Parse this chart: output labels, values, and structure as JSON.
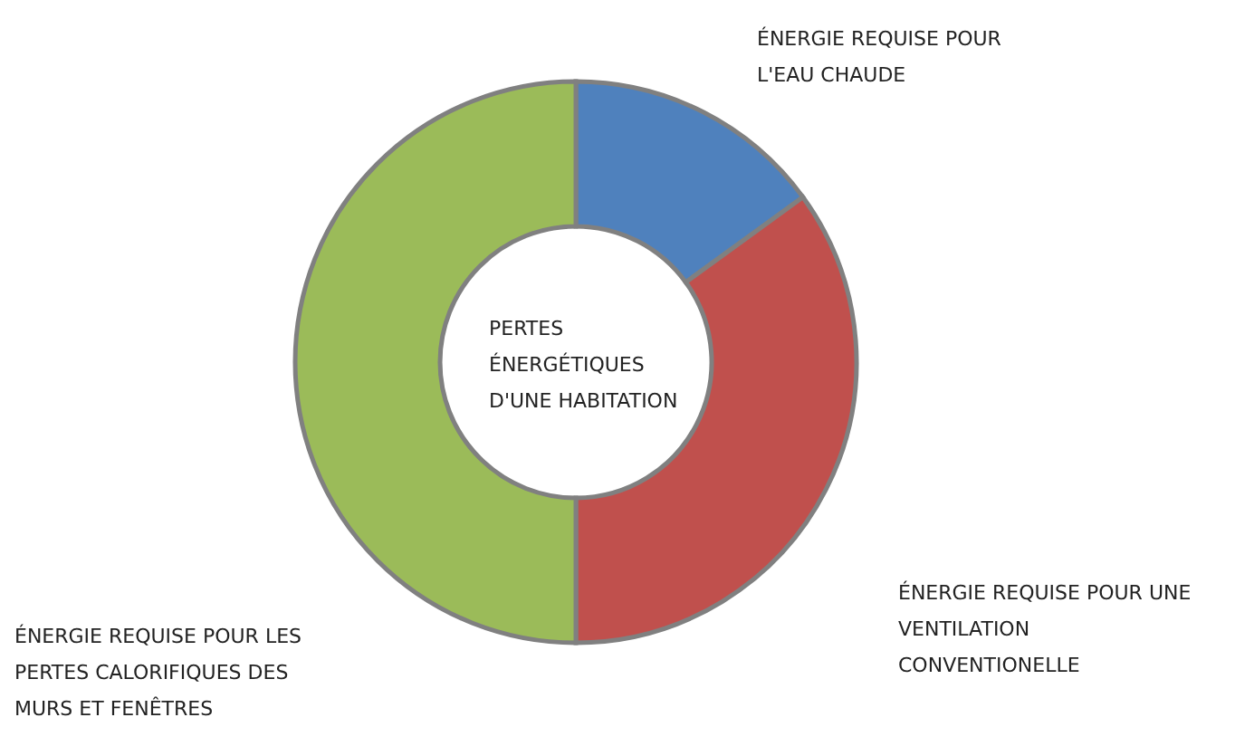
{
  "chart_data": {
    "type": "donut",
    "title": "PERTES ÉNERGÉTIQUES D'UNE HABITATION",
    "categories": [
      "ÉNERGIE REQUISE POUR L'EAU CHAUDE",
      "ÉNERGIE REQUISE POUR UNE VENTILATION CONVENTIONELLE",
      "ÉNERGIE REQUISE POUR LES PERTES CALORIFIQUES DES MURS ET FENÊTRES"
    ],
    "values": [
      15,
      35,
      50
    ],
    "colors": [
      "#4f81bd",
      "#c0504d",
      "#9bbb59"
    ]
  }
}
